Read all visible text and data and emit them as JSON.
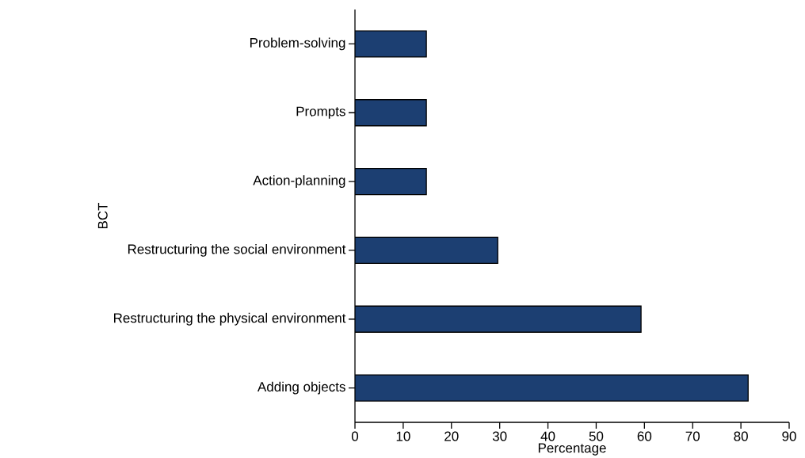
{
  "chart_data": {
    "type": "bar",
    "orientation": "horizontal",
    "xlabel": "Percentage",
    "ylabel": "BCT",
    "categories": [
      "Problem-solving",
      "Prompts",
      "Action-planning",
      "Restructuring the social environment",
      "Restructuring the physical environment",
      "Adding objects"
    ],
    "values": [
      14.8,
      14.8,
      14.8,
      29.6,
      59.3,
      81.5
    ],
    "color": "#1c3f72",
    "xlim": [
      0,
      90
    ],
    "xticks": [
      0,
      10,
      20,
      30,
      40,
      50,
      60,
      70,
      80,
      90
    ]
  }
}
